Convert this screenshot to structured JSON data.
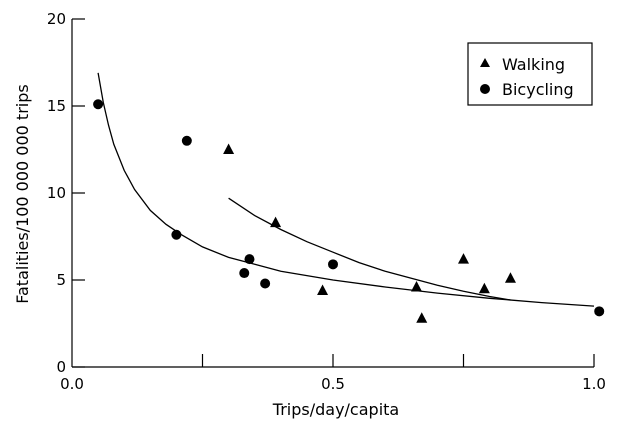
{
  "chart_data": {
    "type": "scatter",
    "title": "",
    "xlabel": "Trips/day/capita",
    "ylabel": "Fatalities/100 000 000 trips",
    "xlim": [
      0.0,
      1.0
    ],
    "ylim": [
      0,
      20
    ],
    "x_ticks": [
      0.0,
      0.5,
      1.0
    ],
    "x_tick_labels": [
      "0.0",
      "0.5",
      "1.0"
    ],
    "y_ticks": [
      0,
      5,
      10,
      15,
      20
    ],
    "y_tick_labels": [
      "0",
      "5",
      "10",
      "15",
      "20"
    ],
    "x_minor_ticks": [
      0.25,
      0.75
    ],
    "grid": false,
    "legend_position": "top-right",
    "series": [
      {
        "name": "Walking",
        "marker": "triangle",
        "color": "#000000",
        "points": [
          {
            "x": 0.3,
            "y": 12.5
          },
          {
            "x": 0.39,
            "y": 8.3
          },
          {
            "x": 0.48,
            "y": 4.4
          },
          {
            "x": 0.66,
            "y": 4.6
          },
          {
            "x": 0.67,
            "y": 2.8
          },
          {
            "x": 0.75,
            "y": 6.2
          },
          {
            "x": 0.79,
            "y": 4.5
          },
          {
            "x": 0.84,
            "y": 5.1
          }
        ],
        "fit_curve": [
          {
            "x": 0.3,
            "y": 9.7
          },
          {
            "x": 0.35,
            "y": 8.7
          },
          {
            "x": 0.4,
            "y": 7.9
          },
          {
            "x": 0.45,
            "y": 7.2
          },
          {
            "x": 0.5,
            "y": 6.6
          },
          {
            "x": 0.55,
            "y": 6.0
          },
          {
            "x": 0.6,
            "y": 5.5
          },
          {
            "x": 0.65,
            "y": 5.1
          },
          {
            "x": 0.7,
            "y": 4.7
          },
          {
            "x": 0.75,
            "y": 4.35
          },
          {
            "x": 0.8,
            "y": 4.05
          },
          {
            "x": 0.84,
            "y": 3.85
          }
        ]
      },
      {
        "name": "Bicycling",
        "marker": "circle",
        "color": "#000000",
        "points": [
          {
            "x": 0.05,
            "y": 15.1
          },
          {
            "x": 0.2,
            "y": 7.6
          },
          {
            "x": 0.22,
            "y": 13.0
          },
          {
            "x": 0.33,
            "y": 5.4
          },
          {
            "x": 0.34,
            "y": 6.2
          },
          {
            "x": 0.37,
            "y": 4.8
          },
          {
            "x": 0.5,
            "y": 5.9
          },
          {
            "x": 1.01,
            "y": 3.2
          }
        ],
        "fit_curve": [
          {
            "x": 0.05,
            "y": 16.9
          },
          {
            "x": 0.06,
            "y": 15.2
          },
          {
            "x": 0.07,
            "y": 13.9
          },
          {
            "x": 0.08,
            "y": 12.8
          },
          {
            "x": 0.1,
            "y": 11.3
          },
          {
            "x": 0.12,
            "y": 10.2
          },
          {
            "x": 0.15,
            "y": 9.0
          },
          {
            "x": 0.18,
            "y": 8.2
          },
          {
            "x": 0.21,
            "y": 7.6
          },
          {
            "x": 0.25,
            "y": 6.9
          },
          {
            "x": 0.3,
            "y": 6.3
          },
          {
            "x": 0.35,
            "y": 5.9
          },
          {
            "x": 0.4,
            "y": 5.5
          },
          {
            "x": 0.5,
            "y": 5.0
          },
          {
            "x": 0.6,
            "y": 4.6
          },
          {
            "x": 0.7,
            "y": 4.25
          },
          {
            "x": 0.8,
            "y": 3.95
          },
          {
            "x": 0.9,
            "y": 3.7
          },
          {
            "x": 1.0,
            "y": 3.5
          }
        ]
      }
    ]
  }
}
